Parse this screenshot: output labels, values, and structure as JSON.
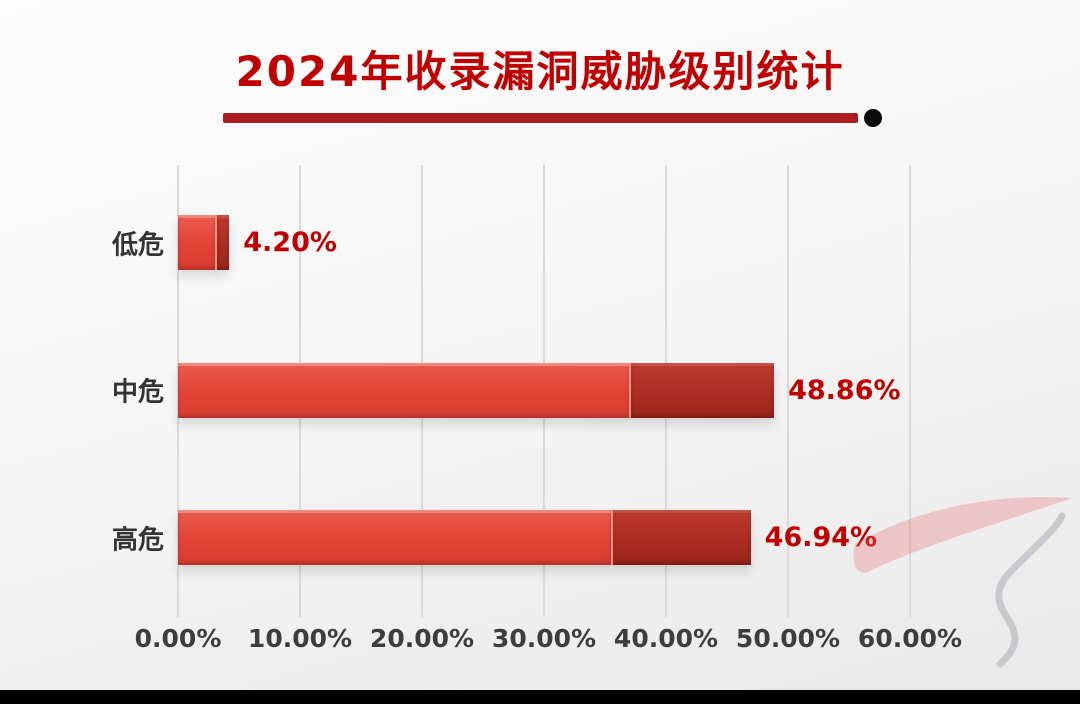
{
  "header": {
    "title": "2024年收录漏洞威胁级别统计"
  },
  "chart_data": {
    "type": "bar",
    "orientation": "horizontal",
    "title": "2024年收录漏洞威胁级别统计",
    "categories": [
      "低危",
      "中危",
      "高危"
    ],
    "values": [
      4.2,
      48.86,
      46.94
    ],
    "data_labels": [
      "4.20%",
      "48.86%",
      "46.94%"
    ],
    "x_tick_labels": [
      "0.00%",
      "10.00%",
      "20.00%",
      "30.00%",
      "40.00%",
      "50.00%",
      "60.00%"
    ],
    "xlim": [
      0,
      60
    ],
    "grid": true,
    "legend": false,
    "colors": {
      "bar_front": "#e2463a",
      "bar_end": "#a92b20",
      "title": "#c00000",
      "data_label": "#c00000",
      "axis_label": "#3d3d3d",
      "gridline": "#d9d9d9",
      "title_underline": "#ab1d20"
    }
  }
}
